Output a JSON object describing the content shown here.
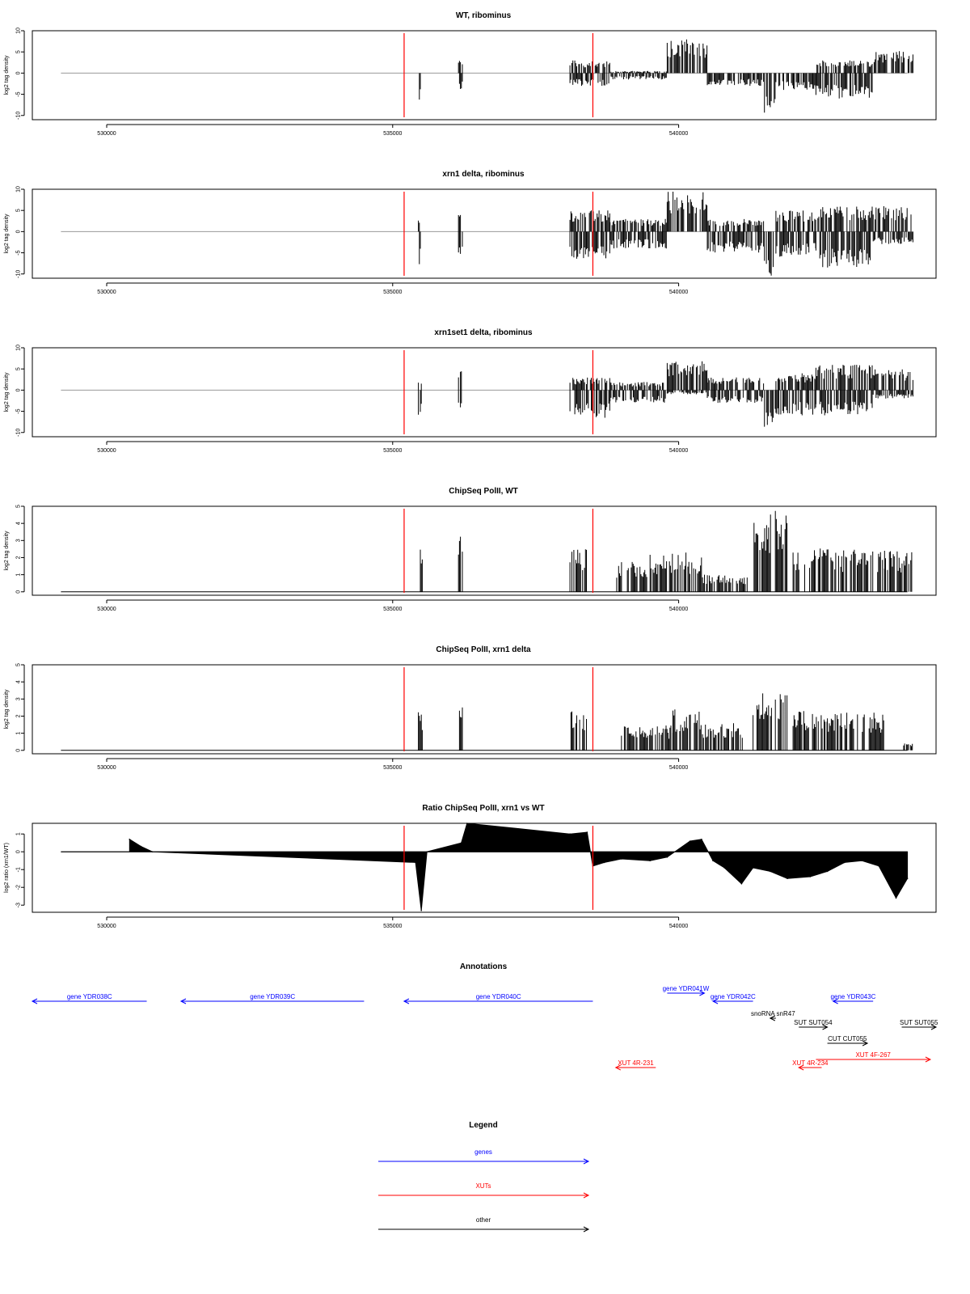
{
  "chart_data": [
    {
      "type": "bar",
      "title": "WT, ribominus",
      "ylabel": "log2 tag density",
      "xlim": [
        528700,
        544500
      ],
      "ylim": [
        -11,
        10
      ],
      "yticks": [
        -10,
        -5,
        0,
        5,
        10
      ],
      "xticks": [
        530000,
        535000,
        540000
      ],
      "baseline": "gray",
      "markers": [
        535200,
        538500
      ],
      "segments": [
        {
          "x0": 535450,
          "x1": 535520,
          "lo": -7,
          "hi": 0
        },
        {
          "x0": 536150,
          "x1": 536230,
          "lo": -4,
          "hi": 3
        },
        {
          "x0": 538100,
          "x1": 538800,
          "lo": -3,
          "hi": 3
        },
        {
          "x0": 538800,
          "x1": 539800,
          "lo": -1.5,
          "hi": 0.5
        },
        {
          "x0": 539800,
          "x1": 540500,
          "lo": 0,
          "hi": 8
        },
        {
          "x0": 540500,
          "x1": 541500,
          "lo": -3,
          "hi": 0
        },
        {
          "x0": 541500,
          "x1": 541700,
          "lo": -10.5,
          "hi": 0
        },
        {
          "x0": 541700,
          "x1": 542400,
          "lo": -4,
          "hi": 0
        },
        {
          "x0": 542400,
          "x1": 543400,
          "lo": -6,
          "hi": 3
        },
        {
          "x0": 543400,
          "x1": 544100,
          "lo": 0,
          "hi": 5.5
        }
      ]
    },
    {
      "type": "bar",
      "title": "xrn1 delta, ribominus",
      "ylabel": "log2 tag density",
      "xlim": [
        528700,
        544500
      ],
      "ylim": [
        -11,
        10
      ],
      "yticks": [
        -10,
        -5,
        0,
        5,
        10
      ],
      "xticks": [
        530000,
        535000,
        540000
      ],
      "baseline": "gray",
      "markers": [
        535200,
        538500
      ],
      "segments": [
        {
          "x0": 535450,
          "x1": 535530,
          "lo": -8.5,
          "hi": 3
        },
        {
          "x0": 536150,
          "x1": 536230,
          "lo": -6,
          "hi": 6
        },
        {
          "x0": 538100,
          "x1": 538800,
          "lo": -6.5,
          "hi": 5
        },
        {
          "x0": 538800,
          "x1": 539800,
          "lo": -4,
          "hi": 3
        },
        {
          "x0": 539800,
          "x1": 540500,
          "lo": 0,
          "hi": 9.5
        },
        {
          "x0": 540500,
          "x1": 541500,
          "lo": -5,
          "hi": 3
        },
        {
          "x0": 541500,
          "x1": 541700,
          "lo": -10.5,
          "hi": 0
        },
        {
          "x0": 541700,
          "x1": 542400,
          "lo": -6,
          "hi": 5
        },
        {
          "x0": 542400,
          "x1": 543400,
          "lo": -8.5,
          "hi": 6
        },
        {
          "x0": 543400,
          "x1": 544100,
          "lo": -3,
          "hi": 6
        }
      ]
    },
    {
      "type": "bar",
      "title": "xrn1set1 delta, ribominus",
      "ylabel": "log2 tag density",
      "xlim": [
        528700,
        544500
      ],
      "ylim": [
        -11,
        10
      ],
      "yticks": [
        -10,
        -5,
        0,
        5,
        10
      ],
      "xticks": [
        530000,
        535000,
        540000
      ],
      "baseline": "gray",
      "markers": [
        535200,
        538500
      ],
      "segments": [
        {
          "x0": 535450,
          "x1": 535520,
          "lo": -6.5,
          "hi": 2
        },
        {
          "x0": 536150,
          "x1": 536230,
          "lo": -5,
          "hi": 4.5
        },
        {
          "x0": 538100,
          "x1": 538800,
          "lo": -7,
          "hi": 3
        },
        {
          "x0": 538800,
          "x1": 539800,
          "lo": -3,
          "hi": 2
        },
        {
          "x0": 539800,
          "x1": 540500,
          "lo": -1,
          "hi": 7
        },
        {
          "x0": 540500,
          "x1": 541500,
          "lo": -3,
          "hi": 3
        },
        {
          "x0": 541500,
          "x1": 541700,
          "lo": -9,
          "hi": 0
        },
        {
          "x0": 541700,
          "x1": 542400,
          "lo": -6,
          "hi": 4
        },
        {
          "x0": 542400,
          "x1": 543400,
          "lo": -6,
          "hi": 6
        },
        {
          "x0": 543400,
          "x1": 544100,
          "lo": -2,
          "hi": 5
        }
      ]
    },
    {
      "type": "bar",
      "title": "ChipSeq PolII, WT",
      "ylabel": "log2 tag density",
      "xlim": [
        528700,
        544500
      ],
      "ylim": [
        -0.2,
        5
      ],
      "yticks": [
        0,
        1,
        2,
        3,
        4,
        5
      ],
      "xticks": [
        530000,
        535000,
        540000
      ],
      "baseline": "black",
      "markers": [
        535200,
        538500
      ],
      "segments": [
        {
          "x0": 535450,
          "x1": 535520,
          "lo": 0,
          "hi": 3
        },
        {
          "x0": 536150,
          "x1": 536230,
          "lo": 0,
          "hi": 3.5
        },
        {
          "x0": 538100,
          "x1": 538400,
          "lo": 0,
          "hi": 2.5
        },
        {
          "x0": 538900,
          "x1": 539500,
          "lo": 0,
          "hi": 1.8
        },
        {
          "x0": 539500,
          "x1": 540400,
          "lo": 0,
          "hi": 2.3
        },
        {
          "x0": 540400,
          "x1": 541200,
          "lo": 0,
          "hi": 1
        },
        {
          "x0": 541300,
          "x1": 541900,
          "lo": 0,
          "hi": 4.8
        },
        {
          "x0": 542000,
          "x1": 542800,
          "lo": 0,
          "hi": 2.7
        },
        {
          "x0": 542800,
          "x1": 543600,
          "lo": 0,
          "hi": 2.5
        },
        {
          "x0": 543600,
          "x1": 544100,
          "lo": 0,
          "hi": 2.5
        }
      ]
    },
    {
      "type": "bar",
      "title": "ChipSeq PolII, xrn1 delta",
      "ylabel": "log2 tag density",
      "xlim": [
        528700,
        544500
      ],
      "ylim": [
        -0.2,
        5
      ],
      "yticks": [
        0,
        1,
        2,
        3,
        4,
        5
      ],
      "xticks": [
        530000,
        535000,
        540000
      ],
      "baseline": "black",
      "markers": [
        535200,
        538500
      ],
      "segments": [
        {
          "x0": 535450,
          "x1": 535520,
          "lo": 0,
          "hi": 2.4
        },
        {
          "x0": 536150,
          "x1": 536230,
          "lo": 0,
          "hi": 2.8
        },
        {
          "x0": 538100,
          "x1": 538400,
          "lo": 0,
          "hi": 2.3
        },
        {
          "x0": 539000,
          "x1": 539900,
          "lo": 0,
          "hi": 1.5
        },
        {
          "x0": 539900,
          "x1": 540400,
          "lo": 0,
          "hi": 2.4
        },
        {
          "x0": 540400,
          "x1": 541200,
          "lo": 0,
          "hi": 1.6
        },
        {
          "x0": 541300,
          "x1": 541900,
          "lo": 0,
          "hi": 3.4
        },
        {
          "x0": 542000,
          "x1": 542600,
          "lo": 0,
          "hi": 2.3
        },
        {
          "x0": 542600,
          "x1": 543600,
          "lo": 0,
          "hi": 2.2
        },
        {
          "x0": 543900,
          "x1": 544100,
          "lo": 0,
          "hi": 0.4
        }
      ]
    },
    {
      "type": "area",
      "title": "Ratio ChipSeq PolII, xrn1 vs WT",
      "ylabel": "log2 ratio (xrn1/WT)",
      "xlim": [
        528700,
        544500
      ],
      "ylim": [
        -3.4,
        1.6
      ],
      "yticks": [
        -3,
        -2,
        -1,
        0,
        1
      ],
      "xticks": [
        530000,
        535000,
        540000
      ],
      "markers": [
        535200,
        538500
      ],
      "x": [
        530400,
        530600,
        530800,
        535400,
        535500,
        535600,
        536200,
        536300,
        538100,
        538400,
        538500,
        538700,
        539000,
        539500,
        539800,
        540200,
        540400,
        540600,
        540800,
        541100,
        541300,
        541600,
        541900,
        542300,
        542600,
        542900,
        543200,
        543500,
        543800,
        544000
      ],
      "y": [
        0.7,
        0.3,
        0,
        -0.6,
        -3.3,
        0,
        0.5,
        1.6,
        1.0,
        1.1,
        -0.8,
        -0.6,
        -0.4,
        -0.5,
        -0.3,
        0.6,
        0.7,
        -0.5,
        -0.9,
        -1.8,
        -0.9,
        -1.1,
        -1.5,
        -1.4,
        -1.1,
        -0.6,
        -0.5,
        -0.8,
        -2.6,
        -1.5
      ]
    }
  ],
  "annotations": {
    "title": "Annotations",
    "items": [
      {
        "label": "gene YDR038C",
        "x0": 528700,
        "x1": 530700,
        "dir": "left",
        "color": "#0000ff",
        "row": 0
      },
      {
        "label": "gene YDR039C",
        "x0": 531300,
        "x1": 534500,
        "dir": "left",
        "color": "#0000ff",
        "row": 0
      },
      {
        "label": "gene YDR040C",
        "x0": 535200,
        "x1": 538500,
        "dir": "left",
        "color": "#0000ff",
        "row": 0
      },
      {
        "label": "gene YDR041W",
        "x0": 539800,
        "x1": 540450,
        "dir": "right",
        "color": "#0000ff",
        "row": -1
      },
      {
        "label": "gene YDR042C",
        "x0": 540600,
        "x1": 541300,
        "dir": "left",
        "color": "#0000ff",
        "row": 0
      },
      {
        "label": "gene YDR043C",
        "x0": 542700,
        "x1": 543400,
        "dir": "left",
        "color": "#0000ff",
        "row": 0
      },
      {
        "label": "snoRNA snR47",
        "x0": 541600,
        "x1": 541700,
        "dir": "left",
        "color": "#000000",
        "row": 1
      },
      {
        "label": "SUT SUT054",
        "x0": 542100,
        "x1": 542600,
        "dir": "right",
        "color": "#000000",
        "row": 2
      },
      {
        "label": "SUT SUT055",
        "x0": 543900,
        "x1": 544500,
        "dir": "right",
        "color": "#000000",
        "row": 2
      },
      {
        "label": "CUT CUT055",
        "x0": 542600,
        "x1": 543300,
        "dir": "right",
        "color": "#000000",
        "row": 3
      },
      {
        "label": "XUT 4F-267",
        "x0": 542400,
        "x1": 544400,
        "dir": "right",
        "color": "#ff0000",
        "row": 4
      },
      {
        "label": "XUT 4R-231",
        "x0": 538900,
        "x1": 539600,
        "dir": "left",
        "color": "#ff0000",
        "row": 5
      },
      {
        "label": "XUT 4R-234",
        "x0": 542100,
        "x1": 542500,
        "dir": "left",
        "color": "#ff0000",
        "row": 5
      }
    ]
  },
  "legend": {
    "title": "Legend",
    "items": [
      {
        "label": "genes",
        "color": "#0000ff"
      },
      {
        "label": "XUTs",
        "color": "#ff0000"
      },
      {
        "label": "other",
        "color": "#000000"
      }
    ]
  }
}
